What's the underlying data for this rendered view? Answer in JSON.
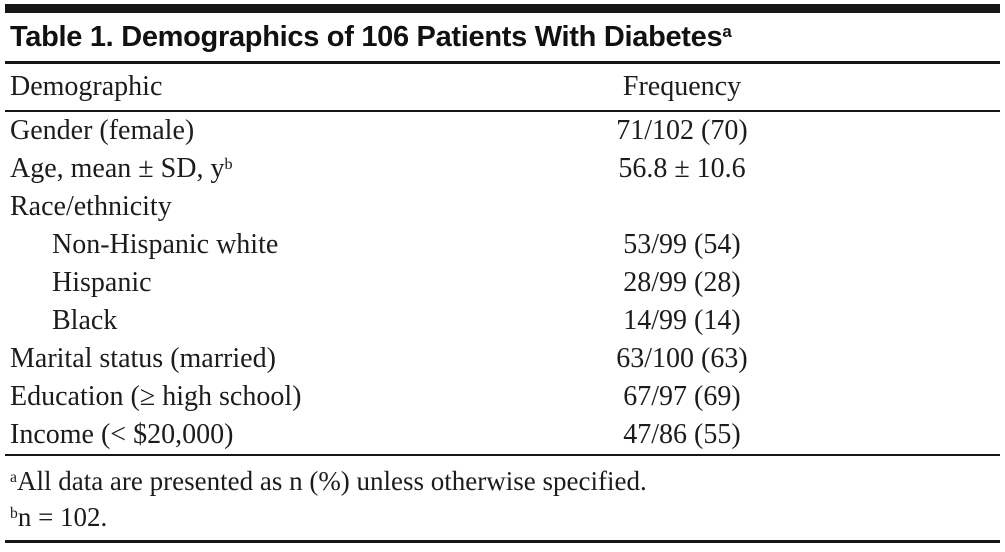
{
  "page": {
    "title_text": "Table 1. Demographics of 106 Patients With Diabetes",
    "title_sup": "a"
  },
  "table": {
    "columns": [
      "Demographic",
      "Frequency"
    ],
    "rows": [
      {
        "label": "Gender (female)",
        "sup": "",
        "value": "71/102 (70)"
      },
      {
        "label": "Age, mean ± SD, y",
        "sup": "b",
        "value": "56.8 ± 10.6"
      },
      {
        "label": "Race/ethnicity",
        "sup": "",
        "value": ""
      },
      {
        "label": "Non-Hispanic white",
        "sup": "",
        "value": "53/99 (54)"
      },
      {
        "label": "Hispanic",
        "sup": "",
        "value": "28/99 (28)"
      },
      {
        "label": "Black",
        "sup": "",
        "value": "14/99 (14)"
      },
      {
        "label": "Marital status (married)",
        "sup": "",
        "value": "63/100 (63)"
      },
      {
        "label": "Education (≥ high school)",
        "sup": "",
        "value": "67/97 (69)"
      },
      {
        "label": "Income (< $20,000)",
        "sup": "",
        "value": "47/86 (55)"
      }
    ],
    "footnotes": [
      {
        "marker": "a",
        "text": "All data are presented as n (%) unless otherwise specified."
      },
      {
        "marker": "b",
        "text": "n = 102."
      }
    ]
  },
  "colors": {
    "background": "#ffffff",
    "text": "#1c1c1c",
    "rule": "#161616"
  }
}
